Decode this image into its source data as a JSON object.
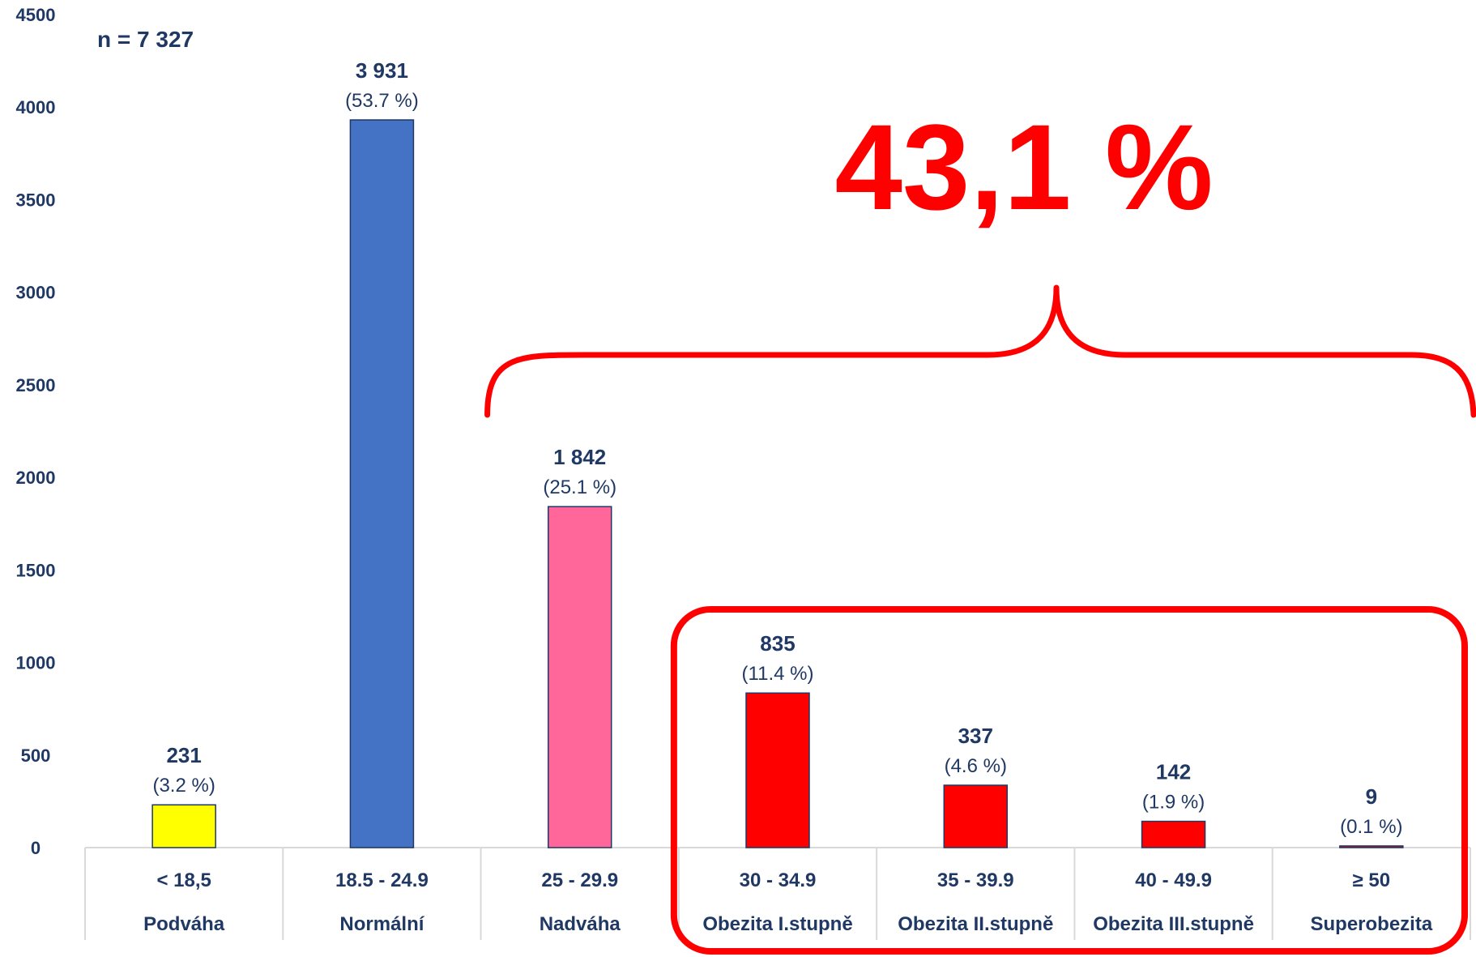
{
  "chart_data": {
    "type": "bar",
    "sample_label": "n = 7 327",
    "categories": [
      {
        "range": "< 18,5",
        "name": "Podváha"
      },
      {
        "range": "18.5 - 24.9",
        "name": "Normální"
      },
      {
        "range": "25 - 29.9",
        "name": "Nadváha"
      },
      {
        "range": "30 - 34.9",
        "name": "Obezita I.stupně"
      },
      {
        "range": "35 - 39.9",
        "name": "Obezita II.stupně"
      },
      {
        "range": "40 - 49.9",
        "name": "Obezita III.stupně"
      },
      {
        "range": "≥ 50",
        "name": "Superobezita"
      }
    ],
    "values": [
      231,
      3931,
      1842,
      835,
      337,
      142,
      9
    ],
    "value_labels": [
      "231",
      "3 931",
      "1 842",
      "835",
      "337",
      "142",
      "9"
    ],
    "percent_labels": [
      "(3.2 %)",
      "(53.7 %)",
      "(25.1 %)",
      "(11.4 %)",
      "(4.6 %)",
      "(1.9 %)",
      "(0.1 %)"
    ],
    "bar_colors": [
      "#ffff00",
      "#4472c4",
      "#ff6699",
      "#ff0000",
      "#ff0000",
      "#ff0000",
      "#ff0000"
    ],
    "ylim": [
      0,
      4500
    ],
    "yticks": [
      0,
      500,
      1000,
      1500,
      2000,
      2500,
      3000,
      3500,
      4000,
      4500
    ],
    "grid": false,
    "annotation": {
      "text": "43,1 %",
      "color": "#ff0000",
      "bracket_from_category": 2,
      "box_from_category": 3
    }
  }
}
